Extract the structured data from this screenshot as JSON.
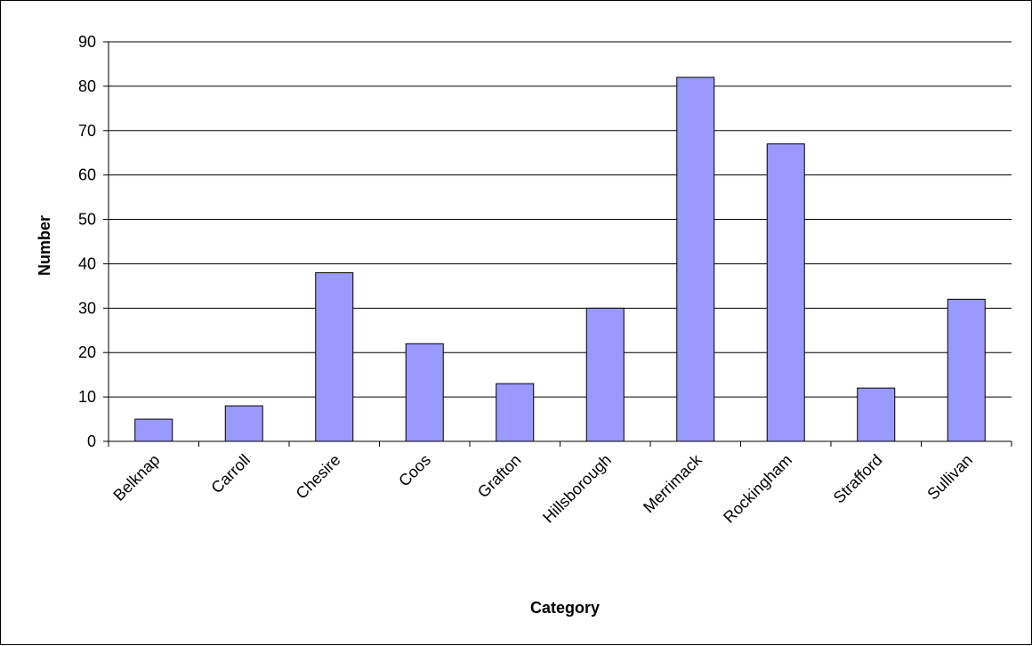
{
  "chart_data": {
    "type": "bar",
    "title": "",
    "xlabel": "Category",
    "ylabel": "Number",
    "categories": [
      "Belknap",
      "Carroll",
      "Chesire",
      "Coos",
      "Grafton",
      "Hillsborough",
      "Merrimack",
      "Rockingham",
      "Strafford",
      "Sullivan"
    ],
    "values": [
      5,
      8,
      38,
      22,
      13,
      30,
      82,
      67,
      12,
      32
    ],
    "ylim": [
      0,
      90
    ],
    "yticks": [
      "0",
      "10",
      "20",
      "30",
      "40",
      "50",
      "60",
      "70",
      "80",
      "90"
    ],
    "grid": true,
    "legend": "none",
    "bar_color": "#9999ff",
    "bar_edge_color": "#000000"
  }
}
